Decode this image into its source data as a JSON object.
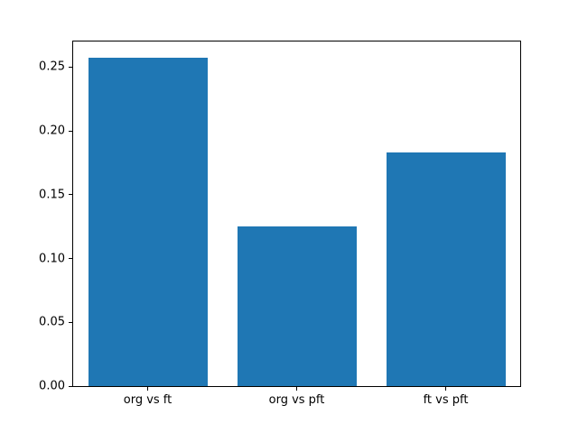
{
  "chart_data": {
    "type": "bar",
    "categories": [
      "org vs ft",
      "org vs pft",
      "ft vs pft"
    ],
    "values": [
      0.257,
      0.125,
      0.183
    ],
    "title": "",
    "xlabel": "",
    "ylabel": "",
    "ylim": [
      0,
      0.27
    ],
    "yticks": [
      0,
      0.05,
      0.1,
      0.15,
      0.2,
      0.25
    ],
    "ytick_label_format": "2dp",
    "bar_color": "#1f77b4",
    "grid": false,
    "legend": "none",
    "background": "#ffffff",
    "axis_color": "#000000"
  }
}
